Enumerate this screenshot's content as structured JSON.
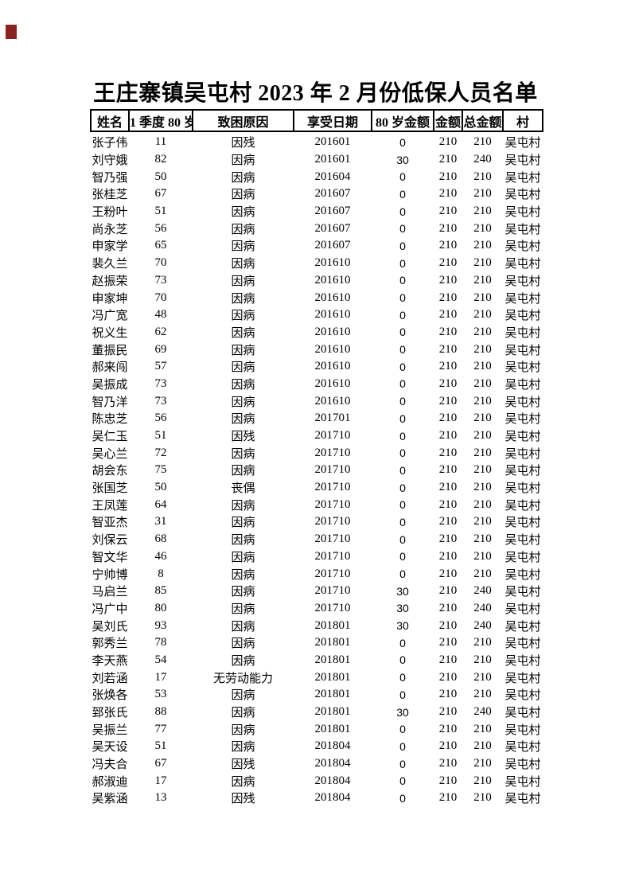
{
  "title": "王庄寨镇吴屯村 2023 年 2 月份低保人员名单",
  "corner_mark_color": "#8b2222",
  "table": {
    "headers": [
      "姓名",
      "1 季度 80 岁",
      "致困原因",
      "享受日期",
      "80 岁金额",
      "金额",
      "总金额",
      "村"
    ],
    "rows": [
      [
        "张子伟",
        "11",
        "因残",
        "201601",
        "0",
        "210",
        "210",
        "吴屯村"
      ],
      [
        "刘守娥",
        "82",
        "因病",
        "201601",
        "30",
        "210",
        "240",
        "吴屯村"
      ],
      [
        "智乃强",
        "50",
        "因病",
        "201604",
        "0",
        "210",
        "210",
        "吴屯村"
      ],
      [
        "张桂芝",
        "67",
        "因病",
        "201607",
        "0",
        "210",
        "210",
        "吴屯村"
      ],
      [
        "王粉叶",
        "51",
        "因病",
        "201607",
        "0",
        "210",
        "210",
        "吴屯村"
      ],
      [
        "尚永芝",
        "56",
        "因病",
        "201607",
        "0",
        "210",
        "210",
        "吴屯村"
      ],
      [
        "申家学",
        "65",
        "因病",
        "201607",
        "0",
        "210",
        "210",
        "吴屯村"
      ],
      [
        "裴久兰",
        "70",
        "因病",
        "201610",
        "0",
        "210",
        "210",
        "吴屯村"
      ],
      [
        "赵振荣",
        "73",
        "因病",
        "201610",
        "0",
        "210",
        "210",
        "吴屯村"
      ],
      [
        "申家坤",
        "70",
        "因病",
        "201610",
        "0",
        "210",
        "210",
        "吴屯村"
      ],
      [
        "冯广宽",
        "48",
        "因病",
        "201610",
        "0",
        "210",
        "210",
        "吴屯村"
      ],
      [
        "祝义生",
        "62",
        "因病",
        "201610",
        "0",
        "210",
        "210",
        "吴屯村"
      ],
      [
        "董振民",
        "69",
        "因病",
        "201610",
        "0",
        "210",
        "210",
        "吴屯村"
      ],
      [
        "郝来闯",
        "57",
        "因病",
        "201610",
        "0",
        "210",
        "210",
        "吴屯村"
      ],
      [
        "吴振成",
        "73",
        "因病",
        "201610",
        "0",
        "210",
        "210",
        "吴屯村"
      ],
      [
        "智乃洋",
        "73",
        "因病",
        "201610",
        "0",
        "210",
        "210",
        "吴屯村"
      ],
      [
        "陈忠芝",
        "56",
        "因病",
        "201701",
        "0",
        "210",
        "210",
        "吴屯村"
      ],
      [
        "吴仁玉",
        "51",
        "因残",
        "201710",
        "0",
        "210",
        "210",
        "吴屯村"
      ],
      [
        "吴心兰",
        "72",
        "因病",
        "201710",
        "0",
        "210",
        "210",
        "吴屯村"
      ],
      [
        "胡会东",
        "75",
        "因病",
        "201710",
        "0",
        "210",
        "210",
        "吴屯村"
      ],
      [
        "张国芝",
        "50",
        "丧偶",
        "201710",
        "0",
        "210",
        "210",
        "吴屯村"
      ],
      [
        "王凤莲",
        "64",
        "因病",
        "201710",
        "0",
        "210",
        "210",
        "吴屯村"
      ],
      [
        "智亚杰",
        "31",
        "因病",
        "201710",
        "0",
        "210",
        "210",
        "吴屯村"
      ],
      [
        "刘保云",
        "68",
        "因病",
        "201710",
        "0",
        "210",
        "210",
        "吴屯村"
      ],
      [
        "智文华",
        "46",
        "因病",
        "201710",
        "0",
        "210",
        "210",
        "吴屯村"
      ],
      [
        "宁帅博",
        "8",
        "因病",
        "201710",
        "0",
        "210",
        "210",
        "吴屯村"
      ],
      [
        "马启兰",
        "85",
        "因病",
        "201710",
        "30",
        "210",
        "240",
        "吴屯村"
      ],
      [
        "冯广中",
        "80",
        "因病",
        "201710",
        "30",
        "210",
        "240",
        "吴屯村"
      ],
      [
        "吴刘氏",
        "93",
        "因病",
        "201801",
        "30",
        "210",
        "240",
        "吴屯村"
      ],
      [
        "郭秀兰",
        "78",
        "因病",
        "201801",
        "0",
        "210",
        "210",
        "吴屯村"
      ],
      [
        "李天燕",
        "54",
        "因病",
        "201801",
        "0",
        "210",
        "210",
        "吴屯村"
      ],
      [
        "刘若涵",
        "17",
        "无劳动能力",
        "201801",
        "0",
        "210",
        "210",
        "吴屯村"
      ],
      [
        "张焕各",
        "53",
        "因病",
        "201801",
        "0",
        "210",
        "210",
        "吴屯村"
      ],
      [
        "郅张氏",
        "88",
        "因病",
        "201801",
        "30",
        "210",
        "240",
        "吴屯村"
      ],
      [
        "吴振兰",
        "77",
        "因病",
        "201801",
        "0",
        "210",
        "210",
        "吴屯村"
      ],
      [
        "吴天设",
        "51",
        "因病",
        "201804",
        "0",
        "210",
        "210",
        "吴屯村"
      ],
      [
        "冯夫合",
        "67",
        "因残",
        "201804",
        "0",
        "210",
        "210",
        "吴屯村"
      ],
      [
        "郝淑迪",
        "17",
        "因病",
        "201804",
        "0",
        "210",
        "210",
        "吴屯村"
      ],
      [
        "吴紫涵",
        "13",
        "因残",
        "201804",
        "0",
        "210",
        "210",
        "吴屯村"
      ]
    ],
    "cell_names": [
      "cell-name",
      "cell-age",
      "cell-reason",
      "cell-date",
      "cell-amount-80",
      "cell-amount",
      "cell-total",
      "cell-village"
    ]
  }
}
